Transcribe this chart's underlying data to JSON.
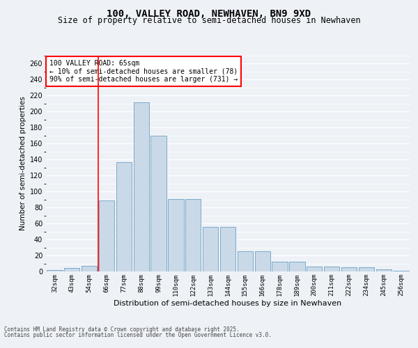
{
  "title": "100, VALLEY ROAD, NEWHAVEN, BN9 9XD",
  "subtitle": "Size of property relative to semi-detached houses in Newhaven",
  "xlabel": "Distribution of semi-detached houses by size in Newhaven",
  "ylabel": "Number of semi-detached properties",
  "categories": [
    "32sqm",
    "43sqm",
    "54sqm",
    "66sqm",
    "77sqm",
    "88sqm",
    "99sqm",
    "110sqm",
    "122sqm",
    "133sqm",
    "144sqm",
    "155sqm",
    "166sqm",
    "178sqm",
    "189sqm",
    "200sqm",
    "211sqm",
    "222sqm",
    "234sqm",
    "245sqm",
    "256sqm"
  ],
  "values": [
    2,
    4,
    7,
    89,
    137,
    212,
    170,
    91,
    91,
    56,
    56,
    25,
    25,
    12,
    12,
    6,
    6,
    5,
    5,
    3,
    1
  ],
  "bar_color": "#c9d9e8",
  "bar_edge_color": "#7aaac8",
  "red_line_index": 3,
  "annotation_title": "100 VALLEY ROAD: 65sqm",
  "annotation_line1": "← 10% of semi-detached houses are smaller (78)",
  "annotation_line2": "90% of semi-detached houses are larger (731) →",
  "footer_line1": "Contains HM Land Registry data © Crown copyright and database right 2025.",
  "footer_line2": "Contains public sector information licensed under the Open Government Licence v3.0.",
  "ylim": [
    0,
    270
  ],
  "background_color": "#eef2f7",
  "grid_color": "#ffffff",
  "title_fontsize": 10,
  "subtitle_fontsize": 8.5,
  "tick_fontsize": 6.5,
  "ylabel_fontsize": 7.5,
  "xlabel_fontsize": 8,
  "annotation_fontsize": 7,
  "footer_fontsize": 5.5
}
